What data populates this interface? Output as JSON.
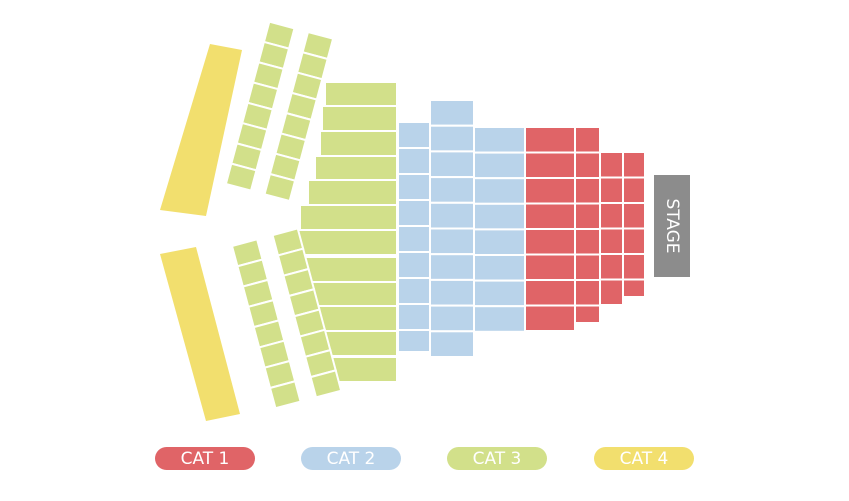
{
  "stage": {
    "label": "STAGE"
  },
  "legend": [
    {
      "label": "CAT 1"
    },
    {
      "label": "CAT 2"
    },
    {
      "label": "CAT 3"
    },
    {
      "label": "CAT 4"
    }
  ]
}
